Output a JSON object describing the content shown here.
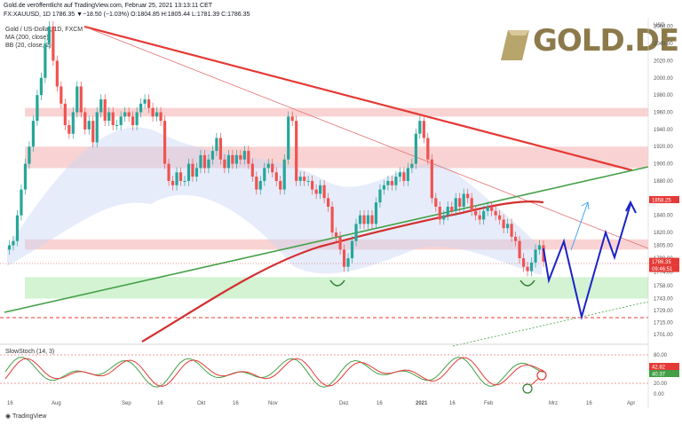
{
  "header": {
    "line1": "Gold.de veröffentlicht auf TradingView.com, Februar 25, 2021 13:13:11 CET",
    "line2": "FX:XAUUSD, 1D  1786.35  ▼−18.50 (−1.03%)  O:1804.85  H:1805.44  L:1781.39  C:1786.35"
  },
  "legend": {
    "title": "Gold / US-Dollar, 1D, FXCM",
    "ma": "MA (200, close)",
    "bb": "BB (20, close, 2)",
    "stoch": "SlowStoch (14, 3)"
  },
  "logo": {
    "text": "GOLD.DE"
  },
  "footer": {
    "text": "TradingView"
  },
  "chart_data": {
    "type": "candlestick",
    "y_axis_label": "USD",
    "y_ticks": [
      1701,
      1715,
      1729,
      1743,
      1758,
      1774,
      1790,
      1805,
      1820,
      1840,
      1860,
      1880,
      1900,
      1920,
      1940,
      1960,
      1980,
      2000,
      2020,
      2040,
      2060
    ],
    "x_ticks": [
      "16",
      "Aug",
      "Sep",
      "16",
      "Okt",
      "16",
      "Nov",
      "Dez",
      "16",
      "2021",
      "16",
      "Feb",
      "Mrz",
      "16",
      "Apr"
    ],
    "price_labels": [
      {
        "value": "1858.25",
        "color": "#e53935"
      },
      {
        "value": "1786.35",
        "color": "#e53935"
      },
      {
        "value": "09:46:51",
        "color": "#e53935"
      }
    ],
    "candles": [
      1800,
      1805,
      1810,
      1840,
      1870,
      1900,
      1920,
      1950,
      1980,
      2000,
      2040,
      2060,
      2020,
      1990,
      1970,
      1945,
      1935,
      1960,
      1990,
      1960,
      1940,
      1950,
      1925,
      1960,
      1975,
      1950,
      1960,
      1945,
      1945,
      1955,
      1960,
      1955,
      1945,
      1960,
      1970,
      1975,
      1965,
      1955,
      1960,
      1950,
      1900,
      1880,
      1875,
      1890,
      1880,
      1880,
      1900,
      1885,
      1895,
      1910,
      1895,
      1905,
      1915,
      1930,
      1905,
      1895,
      1910,
      1900,
      1910,
      1905,
      1915,
      1900,
      1885,
      1870,
      1880,
      1895,
      1900,
      1890,
      1880,
      1870,
      1905,
      1955,
      1950,
      1880,
      1885,
      1880,
      1880,
      1870,
      1865,
      1875,
      1860,
      1850,
      1820,
      1815,
      1800,
      1780,
      1790,
      1810,
      1830,
      1840,
      1830,
      1840,
      1830,
      1855,
      1870,
      1875,
      1880,
      1875,
      1885,
      1890,
      1880,
      1895,
      1900,
      1935,
      1950,
      1930,
      1905,
      1860,
      1850,
      1835,
      1840,
      1850,
      1845,
      1860,
      1850,
      1865,
      1860,
      1845,
      1840,
      1835,
      1845,
      1850,
      1845,
      1840,
      1835,
      1825,
      1830,
      1815,
      1810,
      1790,
      1780,
      1775,
      1785,
      1800,
      1805,
      1786
    ],
    "stoch_labels": [
      {
        "value": "42.82",
        "color": "#e53935"
      },
      {
        "value": "40.37",
        "color": "#43a047"
      }
    ],
    "stoch_ticks": [
      "80.00",
      "20.00",
      "0.00"
    ],
    "zones": [
      {
        "from": 1955,
        "to": 1965,
        "color": "#f8c8c8"
      },
      {
        "from": 1895,
        "to": 1920,
        "color": "#f8c8c8"
      },
      {
        "from": 1800,
        "to": 1812,
        "color": "#f8c8c8"
      },
      {
        "from": 1743,
        "to": 1768,
        "color": "#c8f0c8"
      }
    ]
  }
}
